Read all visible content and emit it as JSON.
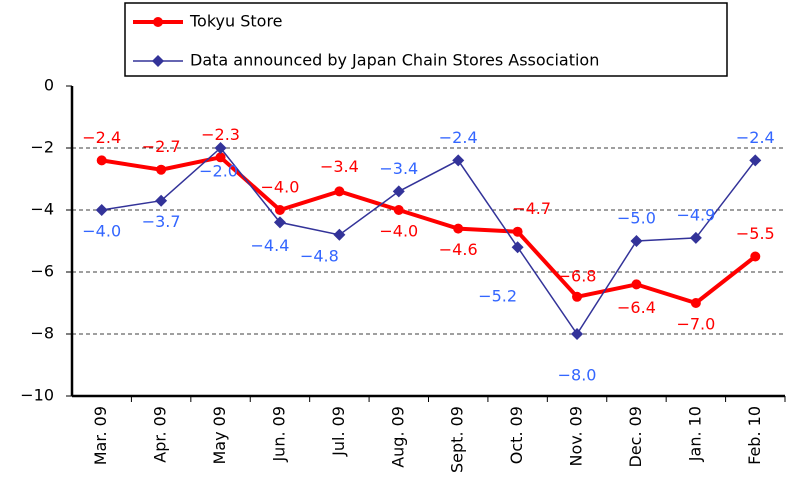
{
  "chart_data": {
    "type": "line",
    "categories": [
      "Mar. 09",
      "Apr. 09",
      "May 09",
      "Jun. 09",
      "Jul. 09",
      "Aug. 09",
      "Sept. 09",
      "Oct. 09",
      "Nov. 09",
      "Dec. 09",
      "Jan. 10",
      "Feb. 10"
    ],
    "series": [
      {
        "name": "Tokyu Store",
        "color": "#ff0000",
        "values": [
          -2.4,
          -2.7,
          -2.3,
          -4.0,
          -3.4,
          -4.0,
          -4.6,
          -4.7,
          -6.8,
          -6.4,
          -7.0,
          -5.5
        ],
        "value_labels": [
          "−2.4",
          "−2.7",
          "−2.3",
          "−4.0",
          "−3.4",
          "−4.0",
          "−4.6",
          "−4.7",
          "−6.8",
          "−6.4",
          "−7.0",
          "−5.5"
        ]
      },
      {
        "name": "Data announced by Japan Chain Stores Association",
        "color": "#333399",
        "values": [
          -4.0,
          -3.7,
          -2.0,
          -4.4,
          -4.8,
          -3.4,
          -2.4,
          -5.2,
          -8.0,
          -5.0,
          -4.9,
          -2.4
        ],
        "value_labels": [
          "−4.0",
          "−3.7",
          "−2.0",
          "−4.4",
          "−4.8",
          "−3.4",
          "−2.4",
          "−5.2",
          "−8.0",
          "−5.0",
          "−4.9",
          "−2.4"
        ]
      }
    ],
    "ylim": [
      -10,
      0
    ],
    "yticks": [
      0,
      {
        "value": -2,
        "label": "−2"
      },
      {
        "value": -4,
        "label": "−4"
      },
      {
        "value": -6,
        "label": "−6"
      },
      {
        "value": -8,
        "label": "−8"
      },
      {
        "value": -10,
        "label": "−10"
      }
    ],
    "grid": true
  }
}
